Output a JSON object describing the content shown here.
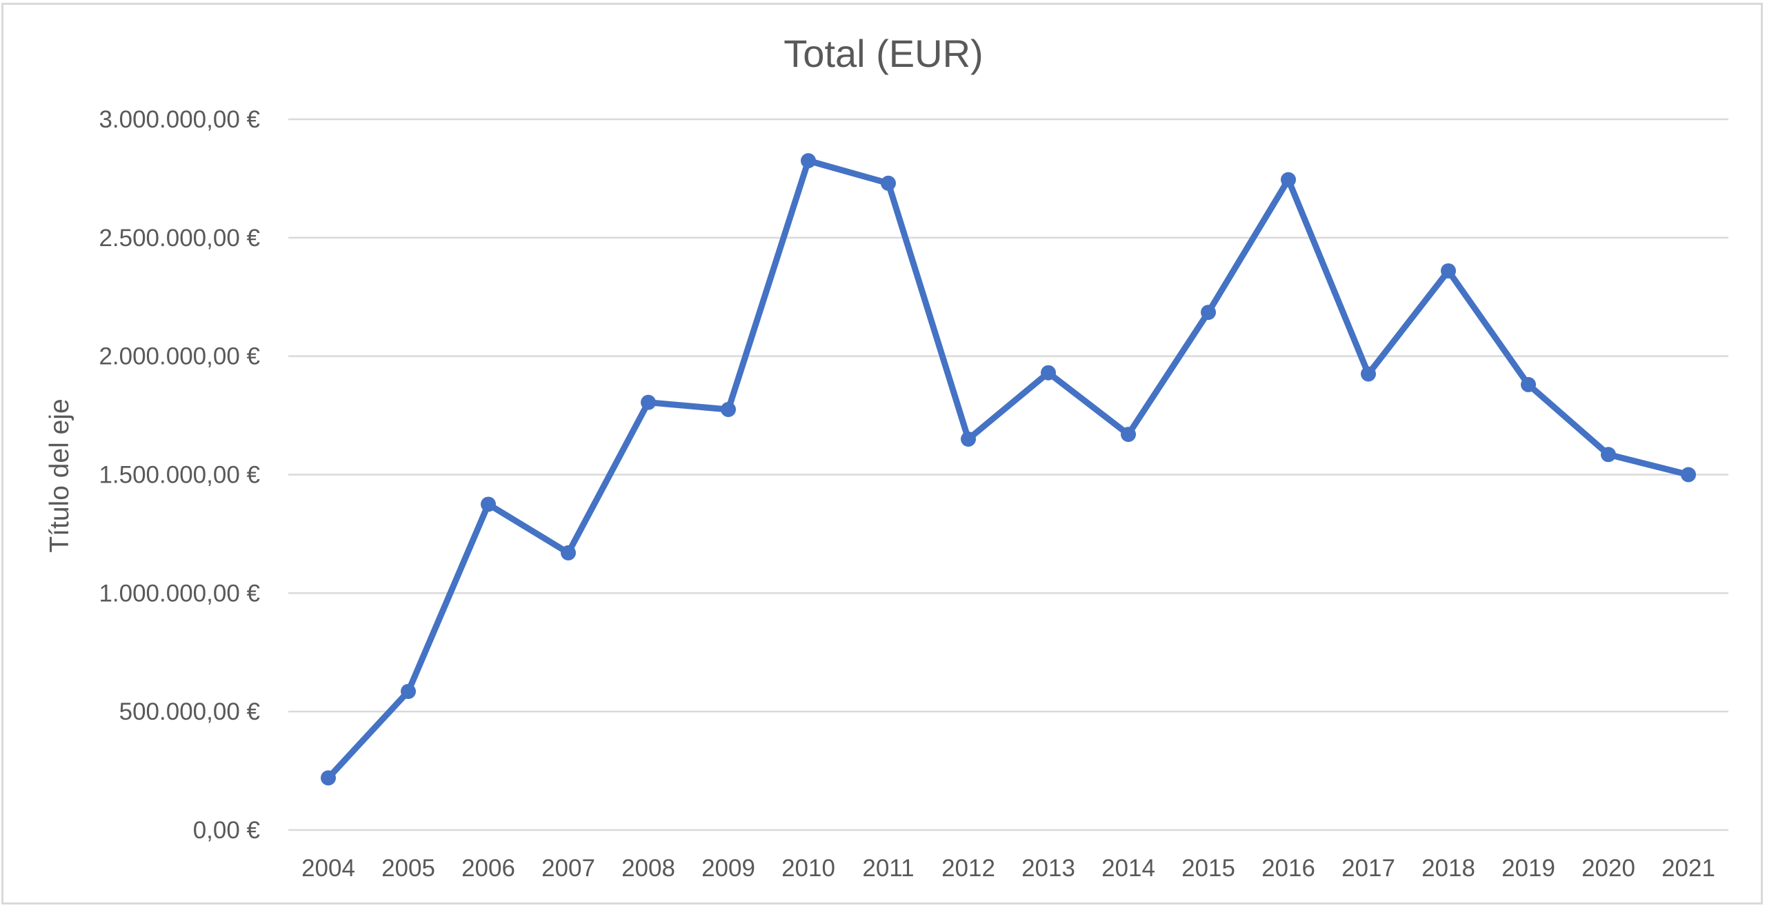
{
  "chart_data": {
    "type": "line",
    "title": "Total (EUR)",
    "xlabel": "",
    "ylabel": "Título del eje",
    "categories": [
      "2004",
      "2005",
      "2006",
      "2007",
      "2008",
      "2009",
      "2010",
      "2011",
      "2012",
      "2013",
      "2014",
      "2015",
      "2016",
      "2017",
      "2018",
      "2019",
      "2020",
      "2021"
    ],
    "series": [
      {
        "values": [
          220000,
          585000,
          1375000,
          1170000,
          1805000,
          1775000,
          2825000,
          2730000,
          1650000,
          1930000,
          1670000,
          2185000,
          2745000,
          1925000,
          2360000,
          1880000,
          1585000,
          1500000
        ],
        "color": "#4472c4"
      }
    ],
    "ylim": [
      0,
      3000000
    ],
    "yticks": [
      0,
      500000,
      1000000,
      1500000,
      2000000,
      2500000,
      3000000
    ],
    "ytick_labels": [
      "0,00 €",
      "500.000,00 €",
      "1.000.000,00 €",
      "1.500.000,00 €",
      "2.000.000,00 €",
      "2.500.000,00 €",
      "3.000.000,00 €"
    ],
    "grid": true,
    "legend": "none",
    "colors": {
      "text": "#595959",
      "grid": "#d9d9d9",
      "border": "#d9d9d9"
    }
  }
}
